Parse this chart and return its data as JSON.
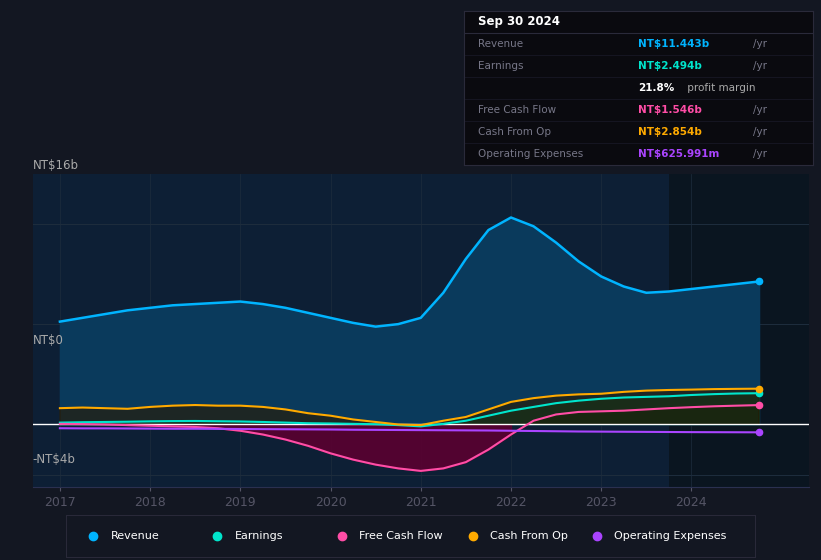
{
  "bg_color": "#131722",
  "plot_bg_color": "#0d1f35",
  "ylim": [
    -5,
    20
  ],
  "xlim": [
    2016.7,
    2025.3
  ],
  "x_ticks": [
    2017,
    2018,
    2019,
    2020,
    2021,
    2022,
    2023,
    2024
  ],
  "revenue_color": "#00b4ff",
  "earnings_color": "#00e5cc",
  "fcf_color": "#ff4da6",
  "cashop_color": "#ffaa00",
  "opex_color": "#aa44ff",
  "highlight_x_start": 2023.75,
  "highlight_x_end": 2025.3,
  "grid_color": "#1e2d3d",
  "zero_line_color": "#ffffff",
  "revenue": {
    "x": [
      2017.0,
      2017.25,
      2017.5,
      2017.75,
      2018.0,
      2018.25,
      2018.5,
      2018.75,
      2019.0,
      2019.25,
      2019.5,
      2019.75,
      2020.0,
      2020.25,
      2020.5,
      2020.75,
      2021.0,
      2021.25,
      2021.5,
      2021.75,
      2022.0,
      2022.25,
      2022.5,
      2022.75,
      2023.0,
      2023.25,
      2023.5,
      2023.75,
      2024.0,
      2024.25,
      2024.5,
      2024.75
    ],
    "y": [
      8.2,
      8.5,
      8.8,
      9.1,
      9.3,
      9.5,
      9.6,
      9.7,
      9.8,
      9.6,
      9.3,
      8.9,
      8.5,
      8.1,
      7.8,
      8.0,
      8.5,
      10.5,
      13.2,
      15.5,
      16.5,
      15.8,
      14.5,
      13.0,
      11.8,
      11.0,
      10.5,
      10.6,
      10.8,
      11.0,
      11.2,
      11.4
    ]
  },
  "earnings": {
    "x": [
      2017.0,
      2017.25,
      2017.5,
      2017.75,
      2018.0,
      2018.25,
      2018.5,
      2018.75,
      2019.0,
      2019.25,
      2019.5,
      2019.75,
      2020.0,
      2020.25,
      2020.5,
      2020.75,
      2021.0,
      2021.25,
      2021.5,
      2021.75,
      2022.0,
      2022.25,
      2022.5,
      2022.75,
      2023.0,
      2023.25,
      2023.5,
      2023.75,
      2024.0,
      2024.25,
      2024.5,
      2024.75
    ],
    "y": [
      0.15,
      0.18,
      0.2,
      0.22,
      0.25,
      0.27,
      0.28,
      0.26,
      0.24,
      0.2,
      0.15,
      0.1,
      0.08,
      0.05,
      0.02,
      -0.05,
      -0.15,
      0.05,
      0.3,
      0.7,
      1.1,
      1.4,
      1.7,
      1.9,
      2.05,
      2.15,
      2.2,
      2.25,
      2.35,
      2.42,
      2.47,
      2.494
    ]
  },
  "fcf": {
    "x": [
      2017.0,
      2017.25,
      2017.5,
      2017.75,
      2018.0,
      2018.25,
      2018.5,
      2018.75,
      2019.0,
      2019.25,
      2019.5,
      2019.75,
      2020.0,
      2020.25,
      2020.5,
      2020.75,
      2021.0,
      2021.25,
      2021.5,
      2021.75,
      2022.0,
      2022.25,
      2022.5,
      2022.75,
      2023.0,
      2023.25,
      2023.5,
      2023.75,
      2024.0,
      2024.25,
      2024.5,
      2024.75
    ],
    "y": [
      0.05,
      0.03,
      0.0,
      -0.05,
      -0.1,
      -0.15,
      -0.2,
      -0.3,
      -0.5,
      -0.8,
      -1.2,
      -1.7,
      -2.3,
      -2.8,
      -3.2,
      -3.5,
      -3.7,
      -3.5,
      -3.0,
      -2.0,
      -0.8,
      0.3,
      0.8,
      1.0,
      1.05,
      1.1,
      1.2,
      1.3,
      1.38,
      1.45,
      1.5,
      1.546
    ]
  },
  "cashop": {
    "x": [
      2017.0,
      2017.25,
      2017.5,
      2017.75,
      2018.0,
      2018.25,
      2018.5,
      2018.75,
      2019.0,
      2019.25,
      2019.5,
      2019.75,
      2020.0,
      2020.25,
      2020.5,
      2020.75,
      2021.0,
      2021.25,
      2021.5,
      2021.75,
      2022.0,
      2022.25,
      2022.5,
      2022.75,
      2023.0,
      2023.25,
      2023.5,
      2023.75,
      2024.0,
      2024.25,
      2024.5,
      2024.75
    ],
    "y": [
      1.3,
      1.35,
      1.3,
      1.25,
      1.4,
      1.5,
      1.55,
      1.5,
      1.5,
      1.4,
      1.2,
      0.9,
      0.7,
      0.4,
      0.2,
      0.0,
      -0.05,
      0.3,
      0.6,
      1.2,
      1.8,
      2.1,
      2.3,
      2.4,
      2.45,
      2.6,
      2.7,
      2.75,
      2.78,
      2.82,
      2.84,
      2.854
    ]
  },
  "opex": {
    "x": [
      2017.0,
      2017.25,
      2017.5,
      2017.75,
      2018.0,
      2018.25,
      2018.5,
      2018.75,
      2019.0,
      2019.25,
      2019.5,
      2019.75,
      2020.0,
      2020.25,
      2020.5,
      2020.75,
      2021.0,
      2021.25,
      2021.5,
      2021.75,
      2022.0,
      2022.25,
      2022.5,
      2022.75,
      2023.0,
      2023.25,
      2023.5,
      2023.75,
      2024.0,
      2024.25,
      2024.5,
      2024.75
    ],
    "y": [
      -0.3,
      -0.31,
      -0.31,
      -0.32,
      -0.33,
      -0.34,
      -0.34,
      -0.35,
      -0.36,
      -0.37,
      -0.38,
      -0.39,
      -0.4,
      -0.42,
      -0.43,
      -0.44,
      -0.45,
      -0.46,
      -0.47,
      -0.48,
      -0.5,
      -0.52,
      -0.54,
      -0.56,
      -0.57,
      -0.58,
      -0.59,
      -0.6,
      -0.61,
      -0.615,
      -0.62,
      -0.626
    ]
  },
  "legend_items": [
    {
      "label": "Revenue",
      "color": "#00b4ff"
    },
    {
      "label": "Earnings",
      "color": "#00e5cc"
    },
    {
      "label": "Free Cash Flow",
      "color": "#ff4da6"
    },
    {
      "label": "Cash From Op",
      "color": "#ffaa00"
    },
    {
      "label": "Operating Expenses",
      "color": "#aa44ff"
    }
  ],
  "info_box": {
    "title": "Sep 30 2024",
    "display_rows": [
      {
        "label": "Revenue",
        "value": "NT$11.443b",
        "suffix": "/yr",
        "color": "#00b4ff"
      },
      {
        "label": "Earnings",
        "value": "NT$2.494b",
        "suffix": "/yr",
        "color": "#00e5cc"
      },
      {
        "label": "",
        "value": "21.8%",
        "suffix": " profit margin",
        "color": "#ffffff"
      },
      {
        "label": "Free Cash Flow",
        "value": "NT$1.546b",
        "suffix": "/yr",
        "color": "#ff4da6"
      },
      {
        "label": "Cash From Op",
        "value": "NT$2.854b",
        "suffix": "/yr",
        "color": "#ffaa00"
      },
      {
        "label": "Operating Expenses",
        "value": "NT$625.991m",
        "suffix": "/yr",
        "color": "#aa44ff"
      }
    ]
  }
}
